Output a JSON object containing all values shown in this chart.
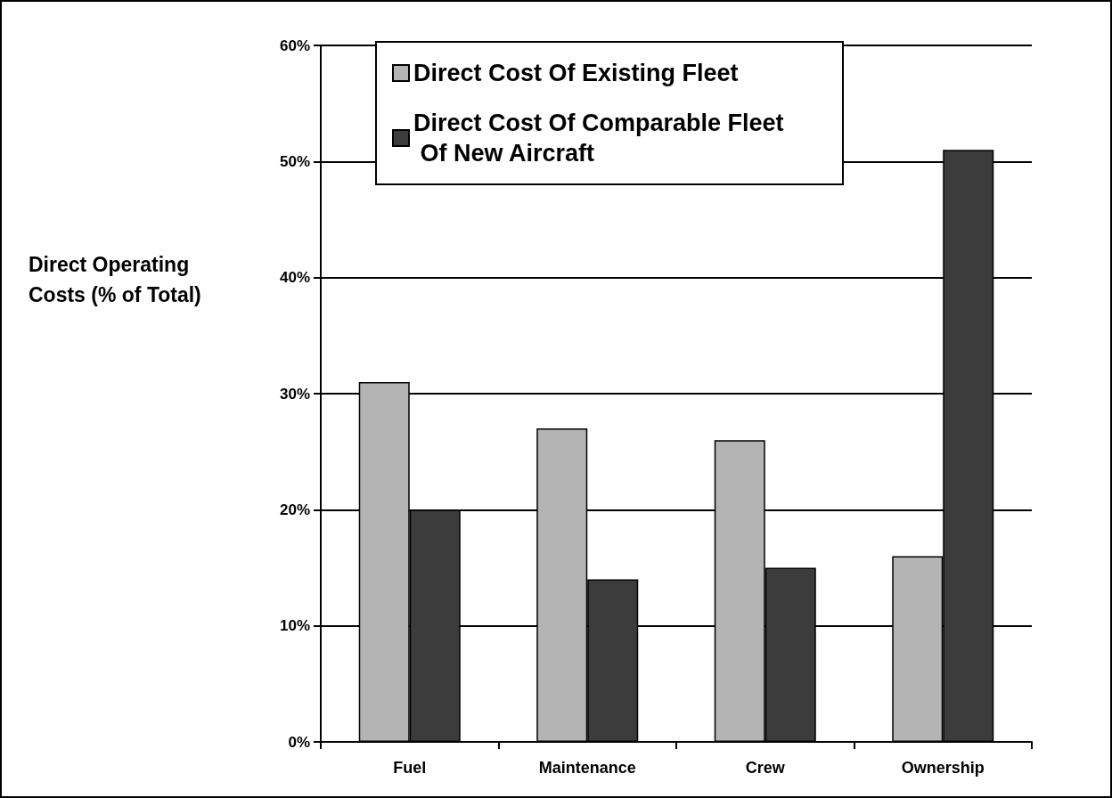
{
  "chart_data": {
    "type": "bar",
    "ylabel": "Direct Operating Costs (% of Total)",
    "categories": [
      "Fuel",
      "Maintenance",
      "Crew",
      "Ownership"
    ],
    "series": [
      {
        "name": "Direct Cost Of Existing Fleet",
        "color": "#b4b4b4",
        "values": [
          31,
          27,
          26,
          16
        ]
      },
      {
        "name": "Direct Cost Of Comparable Fleet Of New Aircraft",
        "color": "#3c3c3c",
        "values": [
          20,
          14,
          15,
          51
        ]
      }
    ],
    "ylim": [
      0,
      60
    ],
    "yticks": [
      {
        "value": 0,
        "label": "0%"
      },
      {
        "value": 10,
        "label": "10%"
      },
      {
        "value": 20,
        "label": "20%"
      },
      {
        "value": 30,
        "label": "30%"
      },
      {
        "value": 40,
        "label": "40%"
      },
      {
        "value": 50,
        "label": "50%"
      },
      {
        "value": 60,
        "label": "60%"
      }
    ],
    "grid": "y",
    "legend": "top"
  }
}
